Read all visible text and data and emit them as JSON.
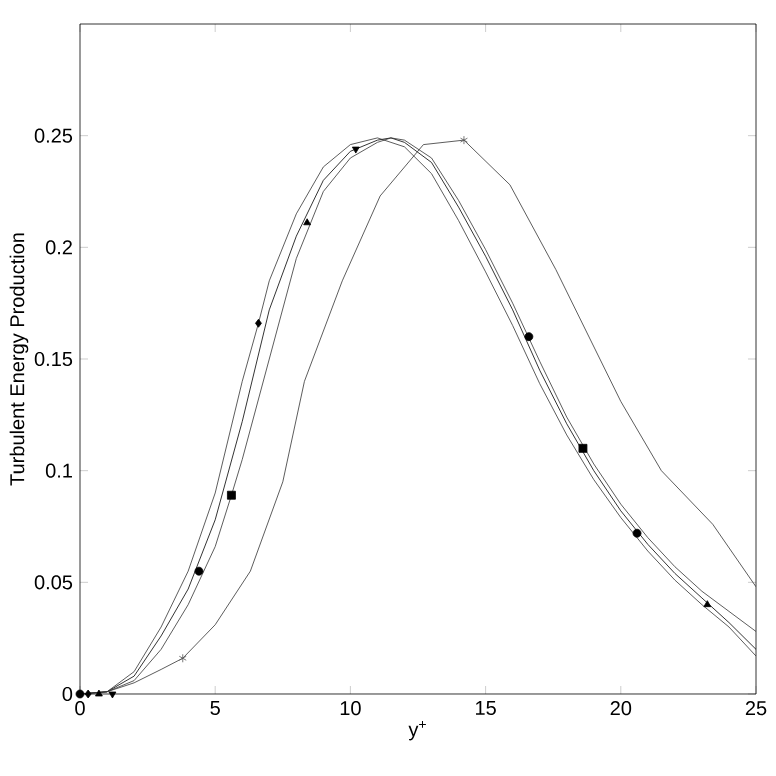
{
  "chart_data": {
    "type": "line",
    "xlabel": "y$^{+}$",
    "ylabel": "Turbulent Energy Production",
    "xlim": [
      0,
      25
    ],
    "ylim": [
      0,
      0.3
    ],
    "xticks": [
      0,
      5,
      10,
      15,
      20,
      25
    ],
    "yticks": [
      0,
      0.05,
      0.1,
      0.15,
      0.2,
      0.25
    ],
    "marker": "none",
    "line_style": "solid",
    "grid": false,
    "series": [
      {
        "color": "#000000",
        "x": [
          0,
          1,
          2,
          3,
          4,
          5,
          6,
          7,
          8,
          9,
          10,
          11,
          11.5,
          12,
          13,
          14,
          15,
          16,
          17,
          18,
          19,
          20,
          21,
          22,
          23,
          24,
          25
        ],
        "values": [
          0,
          0.001,
          0.008,
          0.026,
          0.047,
          0.078,
          0.122,
          0.172,
          0.205,
          0.23,
          0.243,
          0.248,
          0.249,
          0.247,
          0.238,
          0.218,
          0.196,
          0.172,
          0.145,
          0.121,
          0.1,
          0.082,
          0.067,
          0.054,
          0.043,
          0.032,
          0.02
        ]
      },
      {
        "color": "#333333",
        "x": [
          0,
          1,
          2,
          3,
          4,
          5,
          6,
          6.6,
          7,
          8,
          9,
          10,
          11,
          12,
          13,
          14,
          15,
          16,
          17,
          18,
          19,
          20,
          21,
          22,
          23,
          24,
          25
        ],
        "values": [
          0,
          0.001,
          0.01,
          0.03,
          0.055,
          0.09,
          0.14,
          0.166,
          0.185,
          0.215,
          0.236,
          0.246,
          0.249,
          0.245,
          0.233,
          0.212,
          0.189,
          0.165,
          0.139,
          0.116,
          0.096,
          0.079,
          0.064,
          0.051,
          0.04,
          0.03,
          0.017
        ]
      },
      {
        "color": "#333333",
        "x": [
          0,
          1,
          2,
          3,
          4,
          5,
          5.6,
          6,
          7,
          8,
          9,
          10,
          11,
          11.5,
          12,
          13,
          14,
          15,
          16,
          17,
          18,
          19,
          20,
          21,
          22,
          23,
          24,
          25
        ],
        "values": [
          0,
          0.001,
          0.006,
          0.02,
          0.04,
          0.066,
          0.089,
          0.105,
          0.15,
          0.195,
          0.225,
          0.24,
          0.247,
          0.249,
          0.248,
          0.24,
          0.221,
          0.199,
          0.175,
          0.149,
          0.124,
          0.103,
          0.085,
          0.07,
          0.057,
          0.046,
          0.037,
          0.028
        ]
      },
      {
        "color": "#333333",
        "x": [
          0,
          1,
          2,
          3,
          3.8,
          5,
          6.3,
          7.5,
          8.3,
          9.7,
          11.1,
          12.7,
          14.2,
          15.9,
          17.6,
          20,
          21.5,
          23.4,
          25
        ],
        "values": [
          0,
          0.001,
          0.005,
          0.011,
          0.016,
          0.031,
          0.055,
          0.095,
          0.14,
          0.185,
          0.223,
          0.246,
          0.248,
          0.228,
          0.19,
          0.131,
          0.1,
          0.076,
          0.048
        ]
      },
      {
        "type": "scatter",
        "marker": "circle",
        "color": "#000000",
        "x": [
          0,
          4.4,
          16.6,
          20.6
        ],
        "values": [
          0,
          0.055,
          0.16,
          0.072
        ]
      },
      {
        "type": "scatter",
        "marker": "diamond",
        "color": "#000000",
        "x": [
          0.3,
          6.6
        ],
        "values": [
          0,
          0.166
        ]
      },
      {
        "type": "scatter",
        "marker": "square",
        "color": "#000000",
        "x": [
          5.6,
          18.6
        ],
        "values": [
          0.089,
          0.11
        ]
      },
      {
        "type": "scatter",
        "marker": "triangle",
        "color": "#000000",
        "x": [
          0.7,
          8.4,
          23.2
        ],
        "values": [
          0,
          0.211,
          0.04
        ]
      },
      {
        "type": "scatter",
        "marker": "triangle down",
        "color": "#000000",
        "x": [
          1.2,
          10.2
        ],
        "values": [
          0,
          0.244
        ]
      },
      {
        "type": "scatter",
        "marker": "cross",
        "color": "#555555",
        "x": [
          3.8,
          14.2
        ],
        "values": [
          0.016,
          0.248
        ]
      }
    ]
  }
}
